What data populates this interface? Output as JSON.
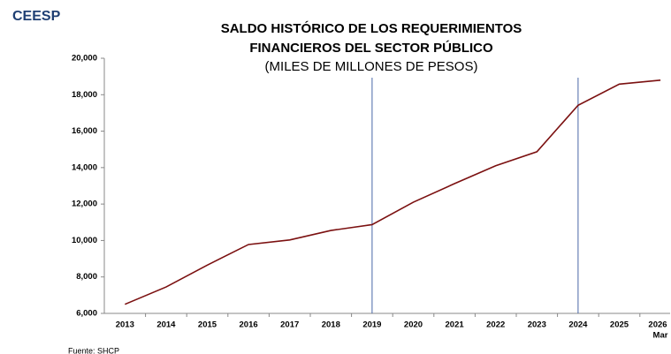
{
  "brand": "CEESP",
  "source": "Fuente: SHCP",
  "chart_data": {
    "type": "line",
    "title": [
      "SALDO HISTÓRICO DE LOS REQUERIMIENTOS",
      "FINANCIEROS DEL SECTOR PÚBLICO"
    ],
    "subtitle": "(MILES DE MILLONES DE PESOS)",
    "categories": [
      "2013",
      "2014",
      "2015",
      "2016",
      "2017",
      "2018",
      "2019",
      "2020",
      "2021",
      "2022",
      "2023",
      "2024",
      "2025",
      "2026"
    ],
    "last_category_note": "Mar",
    "values": [
      6500,
      7450,
      8650,
      9780,
      10030,
      10550,
      10870,
      12100,
      13120,
      14100,
      14870,
      17420,
      18580,
      18800
    ],
    "color": "#7b1010",
    "reference_lines": [
      "2019",
      "2024"
    ],
    "reference_color": "#4a68a8",
    "ylim": [
      6000,
      20000
    ],
    "yticks": [
      {
        "value": 6000,
        "label": "6,000"
      },
      {
        "value": 8000,
        "label": "8,000"
      },
      {
        "value": 10000,
        "label": "10,000"
      },
      {
        "value": 12000,
        "label": "12,000"
      },
      {
        "value": 14000,
        "label": "14,000"
      },
      {
        "value": 16000,
        "label": "16,000"
      },
      {
        "value": 18000,
        "label": "18,000"
      },
      {
        "value": 20000,
        "label": "20,000"
      }
    ],
    "grid": false
  }
}
